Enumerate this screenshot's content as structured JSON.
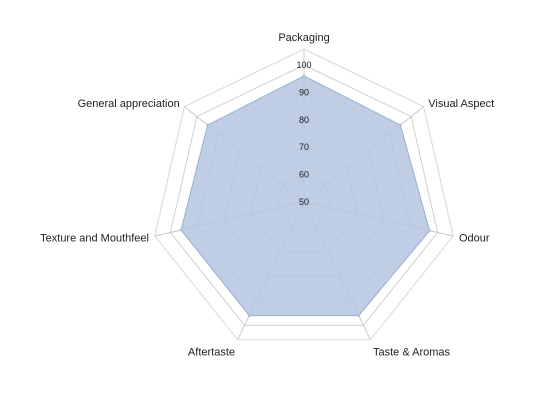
{
  "chart_data": {
    "type": "radar",
    "title": "",
    "categories": [
      "Packaging",
      "Visual Aspect",
      "Odour",
      "Taste & Aromas",
      "Aftertaste",
      "Texture and Mouthfeel",
      "General appreciation"
    ],
    "series": [
      {
        "values": [
          96,
          95,
          97,
          96,
          96,
          96,
          95
        ],
        "color": "#b4c4e0"
      }
    ],
    "r_range": [
      50,
      100
    ],
    "r_ticks": [
      "50",
      "60",
      "70",
      "80",
      "90",
      "100"
    ],
    "grid": true,
    "legend": "none"
  }
}
